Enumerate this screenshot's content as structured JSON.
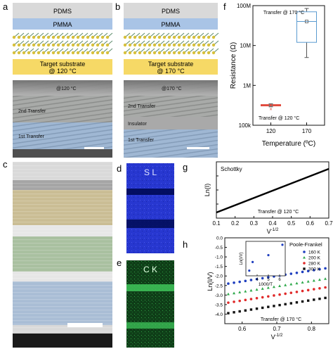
{
  "panels": {
    "a": {
      "letter": "a",
      "layers": {
        "pdms": "PDMS",
        "pmma": "PMMA",
        "substrate_line1": "Target substrate",
        "substrate_line2": "@ 120 °C"
      },
      "micro": {
        "temp": "@120 °C",
        "second_transfer": "2nd Transfer",
        "first_transfer": "1st Transfer"
      }
    },
    "b": {
      "letter": "b",
      "layers": {
        "pdms": "PDMS",
        "pmma": "PMMA",
        "substrate_line1": "Target substrate",
        "substrate_line2": "@ 170 °C"
      },
      "micro": {
        "temp": "@170 °C",
        "second_transfer": "2nd Transfer",
        "insulator": "Insulator",
        "first_transfer": "1st Transfer"
      }
    },
    "c": {
      "letter": "c"
    },
    "d": {
      "letter": "d",
      "label": "S L"
    },
    "e": {
      "letter": "e",
      "label": "C K"
    },
    "f": {
      "letter": "f"
    },
    "g": {
      "letter": "g"
    },
    "h": {
      "letter": "h"
    }
  },
  "colors": {
    "pdms": "#d9d9d9",
    "pmma": "#a9c4e6",
    "substrate": "#f6d966",
    "mos2_blue": "#3a78a8",
    "mos2_yellow": "#d8c13c",
    "sem_blue": "#9fb9d8",
    "sem_gray": "#b9b9b9",
    "eds_blue": "#2f3fd6",
    "eds_green": "#24a23a"
  },
  "chart_data": [
    {
      "id": "f",
      "type": "box",
      "xlabel": "Temperature (ºC)",
      "ylabel": "Resistance (Ω)",
      "ylog": true,
      "ylim": [
        100000,
        100000000
      ],
      "yticks": [
        "100k",
        "1M",
        "10M",
        "100M"
      ],
      "categories": [
        "120",
        "170"
      ],
      "boxes": [
        {
          "category": "120",
          "min": 290000,
          "q1": 305000,
          "median": 318000,
          "q3": 330000,
          "max": 345000,
          "mean": 320000,
          "outliers": [
            260000
          ],
          "color": "#e0473a"
        },
        {
          "category": "170",
          "min": 5000000,
          "q1": 12000000,
          "median": 40000000,
          "q3": 70000000,
          "max": 85000000,
          "mean": 40000000,
          "outliers": [],
          "color": "#5a9bd0"
        }
      ],
      "annotations": [
        "Transfer @ 170 °C",
        "Transfer @ 120 °C"
      ]
    },
    {
      "id": "g",
      "type": "line",
      "title": "Schottky",
      "xlabel": "V^-1/2",
      "ylabel": "Ln(I)",
      "xlim": [
        0.1,
        0.7
      ],
      "ylim": [
        -7,
        -3
      ],
      "xticks": [
        "0.1",
        "0.2",
        "0.3",
        "0.4",
        "0.5",
        "0.6",
        "0.7"
      ],
      "yticks": [
        "-7",
        "-6",
        "-5",
        "-4",
        "-3"
      ],
      "series": [
        {
          "x": [
            0.1,
            0.7
          ],
          "y": [
            -6.6,
            -3.5
          ],
          "color": "#000000"
        }
      ],
      "annotation": "Transfer @ 120 °C"
    },
    {
      "id": "h",
      "type": "scatter",
      "title": "Poole-Frankel",
      "xlabel": "V^-1/2",
      "ylabel": "Ln(I/V)",
      "xlim": [
        0.55,
        0.85
      ],
      "ylim": [
        -4.5,
        0
      ],
      "xticks": [
        "0.6",
        "0.7",
        "0.8"
      ],
      "yticks": [
        "-4.0",
        "-3.5",
        "-3.0",
        "-2.5",
        "-2.0",
        "-1.5",
        "-1.0",
        "-0.5",
        "0.0"
      ],
      "series": [
        {
          "name": "160 K",
          "color": "#1f3fbf",
          "marker": "circle",
          "y_start": -2.4,
          "y_end": -1.6
        },
        {
          "name": "200 K",
          "color": "#2ea84a",
          "marker": "triangle",
          "y_start": -2.95,
          "y_end": -2.15
        },
        {
          "name": "280 K",
          "color": "#e02a2a",
          "marker": "circle",
          "y_start": -3.4,
          "y_end": -2.6
        },
        {
          "name": "300 K",
          "color": "#111111",
          "marker": "square",
          "y_start": -3.95,
          "y_end": -3.15
        }
      ],
      "annotation": "Transfer @ 170 °C",
      "inset": {
        "xlabel": "1000/T",
        "ylabel": "Ln(I/V)",
        "xticks": [
          "4",
          "5",
          "6"
        ],
        "xlim": [
          3,
          6.5
        ],
        "ylim": [
          -4.2,
          -2.2
        ],
        "points": [
          [
            3.3,
            -3.9
          ],
          [
            3.6,
            -3.4
          ],
          [
            5.0,
            -3.0
          ],
          [
            6.25,
            -2.4
          ]
        ]
      }
    }
  ]
}
